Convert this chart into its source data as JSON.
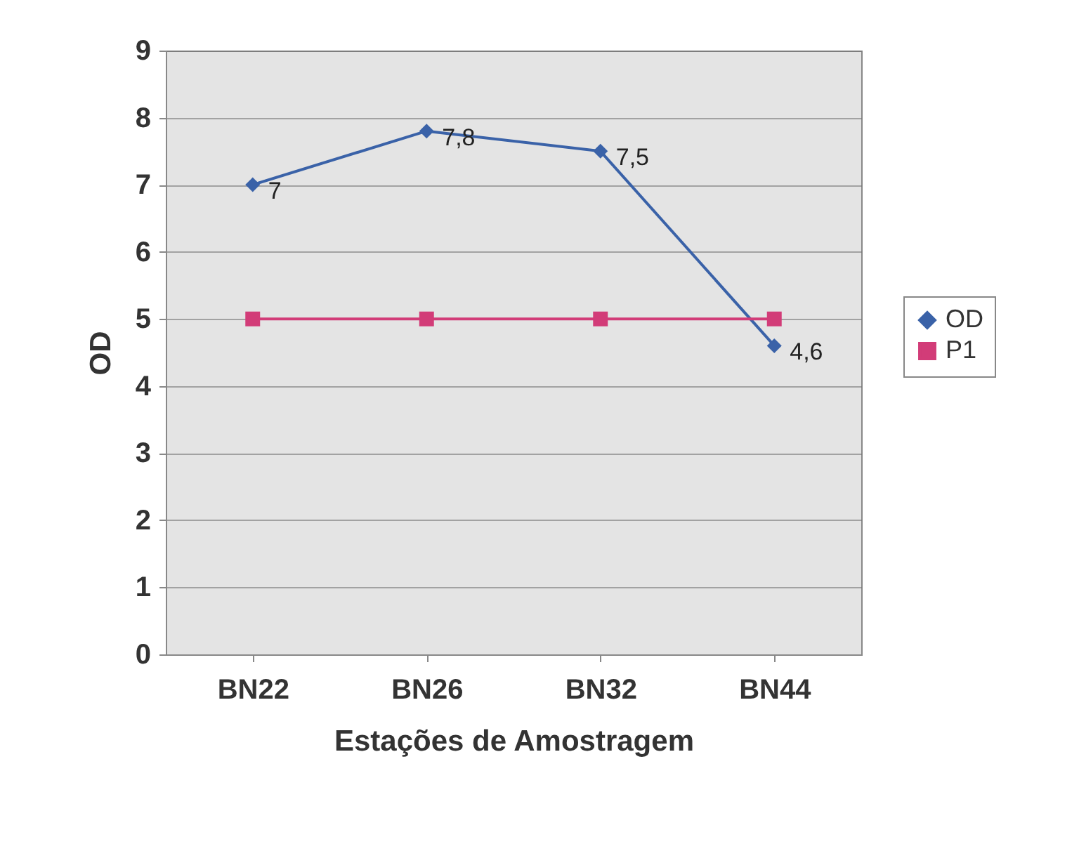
{
  "chart_data": {
    "type": "line",
    "xlabel": "Estações de Amostragem",
    "ylabel": "OD",
    "categories": [
      "BN22",
      "BN26",
      "BN32",
      "BN44"
    ],
    "series": [
      {
        "name": "OD",
        "color": "#3a62a8",
        "marker": "diamond",
        "values": [
          7,
          7.8,
          7.5,
          4.6
        ],
        "value_labels": [
          "7",
          "7,8",
          "7,5",
          "4,6"
        ]
      },
      {
        "name": "P1",
        "color": "#d23c78",
        "marker": "square",
        "values": [
          5,
          5,
          5,
          5
        ]
      }
    ],
    "ylim": [
      0,
      9
    ],
    "yticks": [
      0,
      1,
      2,
      3,
      4,
      5,
      6,
      7,
      8,
      9
    ],
    "grid": "y",
    "legend": "right"
  }
}
